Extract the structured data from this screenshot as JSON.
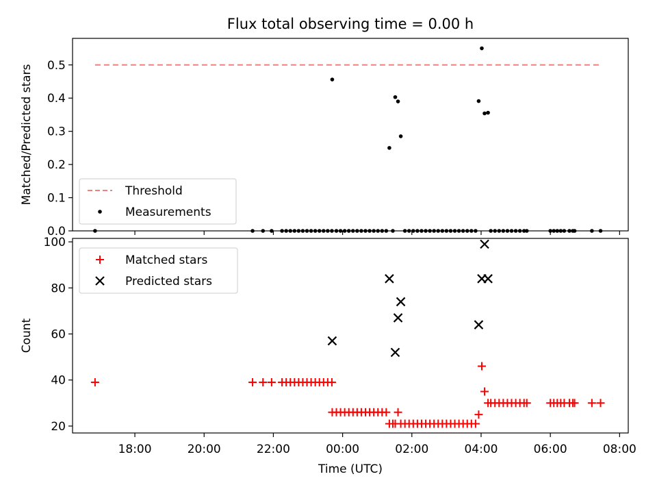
{
  "figure": {
    "title": "Flux total observing time = 0.00 h"
  },
  "chart_data": [
    {
      "type": "scatter",
      "xlabel": "",
      "ylabel": "Matched/Predicted stars",
      "xlim": [
        -7.8,
        8.25
      ],
      "ylim": [
        0,
        0.58
      ],
      "yticks": [
        0.0,
        0.1,
        0.2,
        0.3,
        0.4,
        0.5
      ],
      "ytick_labels": [
        "0.0",
        "0.1",
        "0.2",
        "0.3",
        "0.4",
        "0.5"
      ],
      "grid": false,
      "legend": {
        "position": "lower-left",
        "entries": [
          {
            "label": "Threshold",
            "marker": "dashed-line",
            "color": "#f08080"
          },
          {
            "label": "Measurements",
            "marker": "dot",
            "color": "#000000"
          }
        ]
      },
      "threshold": {
        "name": "Threshold",
        "value": 0.5,
        "x_range": [
          -7.15,
          7.45
        ],
        "color": "#f08080"
      },
      "series": [
        {
          "name": "Measurements",
          "color": "#000000",
          "points": [
            [
              -7.15,
              0
            ],
            [
              -2.6,
              0
            ],
            [
              -2.3,
              0
            ],
            [
              -2.05,
              0
            ],
            [
              -1.75,
              0
            ],
            [
              -1.63,
              0
            ],
            [
              -1.51,
              0
            ],
            [
              -1.39,
              0
            ],
            [
              -1.27,
              0
            ],
            [
              -1.15,
              0
            ],
            [
              -1.03,
              0
            ],
            [
              -0.91,
              0
            ],
            [
              -0.79,
              0
            ],
            [
              -0.67,
              0
            ],
            [
              -0.55,
              0
            ],
            [
              -0.43,
              0
            ],
            [
              -0.31,
              0
            ],
            [
              -0.3,
              0.456
            ],
            [
              -0.18,
              0
            ],
            [
              -0.06,
              0
            ],
            [
              0.06,
              0
            ],
            [
              0.18,
              0
            ],
            [
              0.3,
              0
            ],
            [
              0.42,
              0
            ],
            [
              0.54,
              0
            ],
            [
              0.66,
              0
            ],
            [
              0.78,
              0
            ],
            [
              0.9,
              0
            ],
            [
              1.02,
              0
            ],
            [
              1.14,
              0
            ],
            [
              1.26,
              0
            ],
            [
              1.35,
              0.25
            ],
            [
              1.45,
              0
            ],
            [
              1.52,
              0.403
            ],
            [
              1.6,
              0.39
            ],
            [
              1.68,
              0.285
            ],
            [
              1.8,
              0
            ],
            [
              1.92,
              0
            ],
            [
              2.04,
              0
            ],
            [
              2.16,
              0
            ],
            [
              2.28,
              0
            ],
            [
              2.4,
              0
            ],
            [
              2.52,
              0
            ],
            [
              2.64,
              0
            ],
            [
              2.76,
              0
            ],
            [
              2.88,
              0
            ],
            [
              3.0,
              0
            ],
            [
              3.12,
              0
            ],
            [
              3.24,
              0
            ],
            [
              3.36,
              0
            ],
            [
              3.48,
              0
            ],
            [
              3.6,
              0
            ],
            [
              3.72,
              0
            ],
            [
              3.84,
              0
            ],
            [
              3.93,
              0.391
            ],
            [
              4.02,
              0.55
            ],
            [
              4.1,
              0.354
            ],
            [
              4.2,
              0.356
            ],
            [
              4.28,
              0
            ],
            [
              4.4,
              0
            ],
            [
              4.52,
              0
            ],
            [
              4.64,
              0
            ],
            [
              4.76,
              0
            ],
            [
              4.88,
              0
            ],
            [
              5.0,
              0
            ],
            [
              5.12,
              0
            ],
            [
              5.24,
              0
            ],
            [
              5.32,
              0
            ],
            [
              6.0,
              0
            ],
            [
              6.1,
              0
            ],
            [
              6.2,
              0
            ],
            [
              6.3,
              0
            ],
            [
              6.4,
              0
            ],
            [
              6.55,
              0
            ],
            [
              6.65,
              0
            ],
            [
              6.7,
              0
            ],
            [
              7.2,
              0
            ],
            [
              7.45,
              0
            ]
          ]
        }
      ]
    },
    {
      "type": "scatter",
      "xlabel": "Time (UTC)",
      "ylabel": "Count",
      "xlim": [
        -7.8,
        8.25
      ],
      "ylim": [
        17,
        101.5
      ],
      "xticks": [
        -6,
        -4,
        -2,
        0,
        2,
        4,
        6,
        8
      ],
      "xtick_labels": [
        "18:00",
        "20:00",
        "22:00",
        "00:00",
        "02:00",
        "04:00",
        "06:00",
        "08:00"
      ],
      "yticks": [
        20,
        40,
        60,
        80,
        100
      ],
      "ytick_labels": [
        "20",
        "40",
        "60",
        "80",
        "100"
      ],
      "grid": false,
      "legend": {
        "position": "upper-left",
        "entries": [
          {
            "label": "Matched stars",
            "marker": "plus",
            "color": "#ff0000"
          },
          {
            "label": "Predicted stars",
            "marker": "x",
            "color": "#000000"
          }
        ]
      },
      "series": [
        {
          "name": "Matched stars",
          "marker": "plus",
          "color": "#ff0000",
          "points": [
            [
              -7.15,
              39
            ],
            [
              -2.6,
              39
            ],
            [
              -2.3,
              39
            ],
            [
              -2.05,
              39
            ],
            [
              -1.75,
              39
            ],
            [
              -1.63,
              39
            ],
            [
              -1.51,
              39
            ],
            [
              -1.39,
              39
            ],
            [
              -1.27,
              39
            ],
            [
              -1.15,
              39
            ],
            [
              -1.03,
              39
            ],
            [
              -0.91,
              39
            ],
            [
              -0.79,
              39
            ],
            [
              -0.67,
              39
            ],
            [
              -0.55,
              39
            ],
            [
              -0.43,
              39
            ],
            [
              -0.31,
              39
            ],
            [
              -0.3,
              26
            ],
            [
              -0.18,
              26
            ],
            [
              -0.06,
              26
            ],
            [
              0.06,
              26
            ],
            [
              0.18,
              26
            ],
            [
              0.3,
              26
            ],
            [
              0.42,
              26
            ],
            [
              0.54,
              26
            ],
            [
              0.66,
              26
            ],
            [
              0.78,
              26
            ],
            [
              0.9,
              26
            ],
            [
              1.02,
              26
            ],
            [
              1.14,
              26
            ],
            [
              1.26,
              26
            ],
            [
              1.35,
              21
            ],
            [
              1.45,
              21
            ],
            [
              1.52,
              21
            ],
            [
              1.6,
              26
            ],
            [
              1.68,
              21
            ],
            [
              1.8,
              21
            ],
            [
              1.92,
              21
            ],
            [
              2.04,
              21
            ],
            [
              2.16,
              21
            ],
            [
              2.28,
              21
            ],
            [
              2.4,
              21
            ],
            [
              2.52,
              21
            ],
            [
              2.64,
              21
            ],
            [
              2.76,
              21
            ],
            [
              2.88,
              21
            ],
            [
              3.0,
              21
            ],
            [
              3.12,
              21
            ],
            [
              3.24,
              21
            ],
            [
              3.36,
              21
            ],
            [
              3.48,
              21
            ],
            [
              3.6,
              21
            ],
            [
              3.72,
              21
            ],
            [
              3.84,
              21
            ],
            [
              3.93,
              25
            ],
            [
              4.02,
              46
            ],
            [
              4.1,
              35
            ],
            [
              4.2,
              30
            ],
            [
              4.28,
              30
            ],
            [
              4.4,
              30
            ],
            [
              4.52,
              30
            ],
            [
              4.64,
              30
            ],
            [
              4.76,
              30
            ],
            [
              4.88,
              30
            ],
            [
              5.0,
              30
            ],
            [
              5.12,
              30
            ],
            [
              5.24,
              30
            ],
            [
              5.32,
              30
            ],
            [
              6.0,
              30
            ],
            [
              6.1,
              30
            ],
            [
              6.2,
              30
            ],
            [
              6.3,
              30
            ],
            [
              6.4,
              30
            ],
            [
              6.55,
              30
            ],
            [
              6.65,
              30
            ],
            [
              6.7,
              30
            ],
            [
              7.2,
              30
            ],
            [
              7.45,
              30
            ]
          ]
        },
        {
          "name": "Predicted stars",
          "marker": "x",
          "color": "#000000",
          "points": [
            [
              -0.3,
              57
            ],
            [
              1.35,
              84
            ],
            [
              1.52,
              52
            ],
            [
              1.6,
              67
            ],
            [
              1.68,
              74
            ],
            [
              3.93,
              64
            ],
            [
              4.02,
              84
            ],
            [
              4.1,
              99
            ],
            [
              4.2,
              84
            ]
          ]
        }
      ]
    }
  ]
}
